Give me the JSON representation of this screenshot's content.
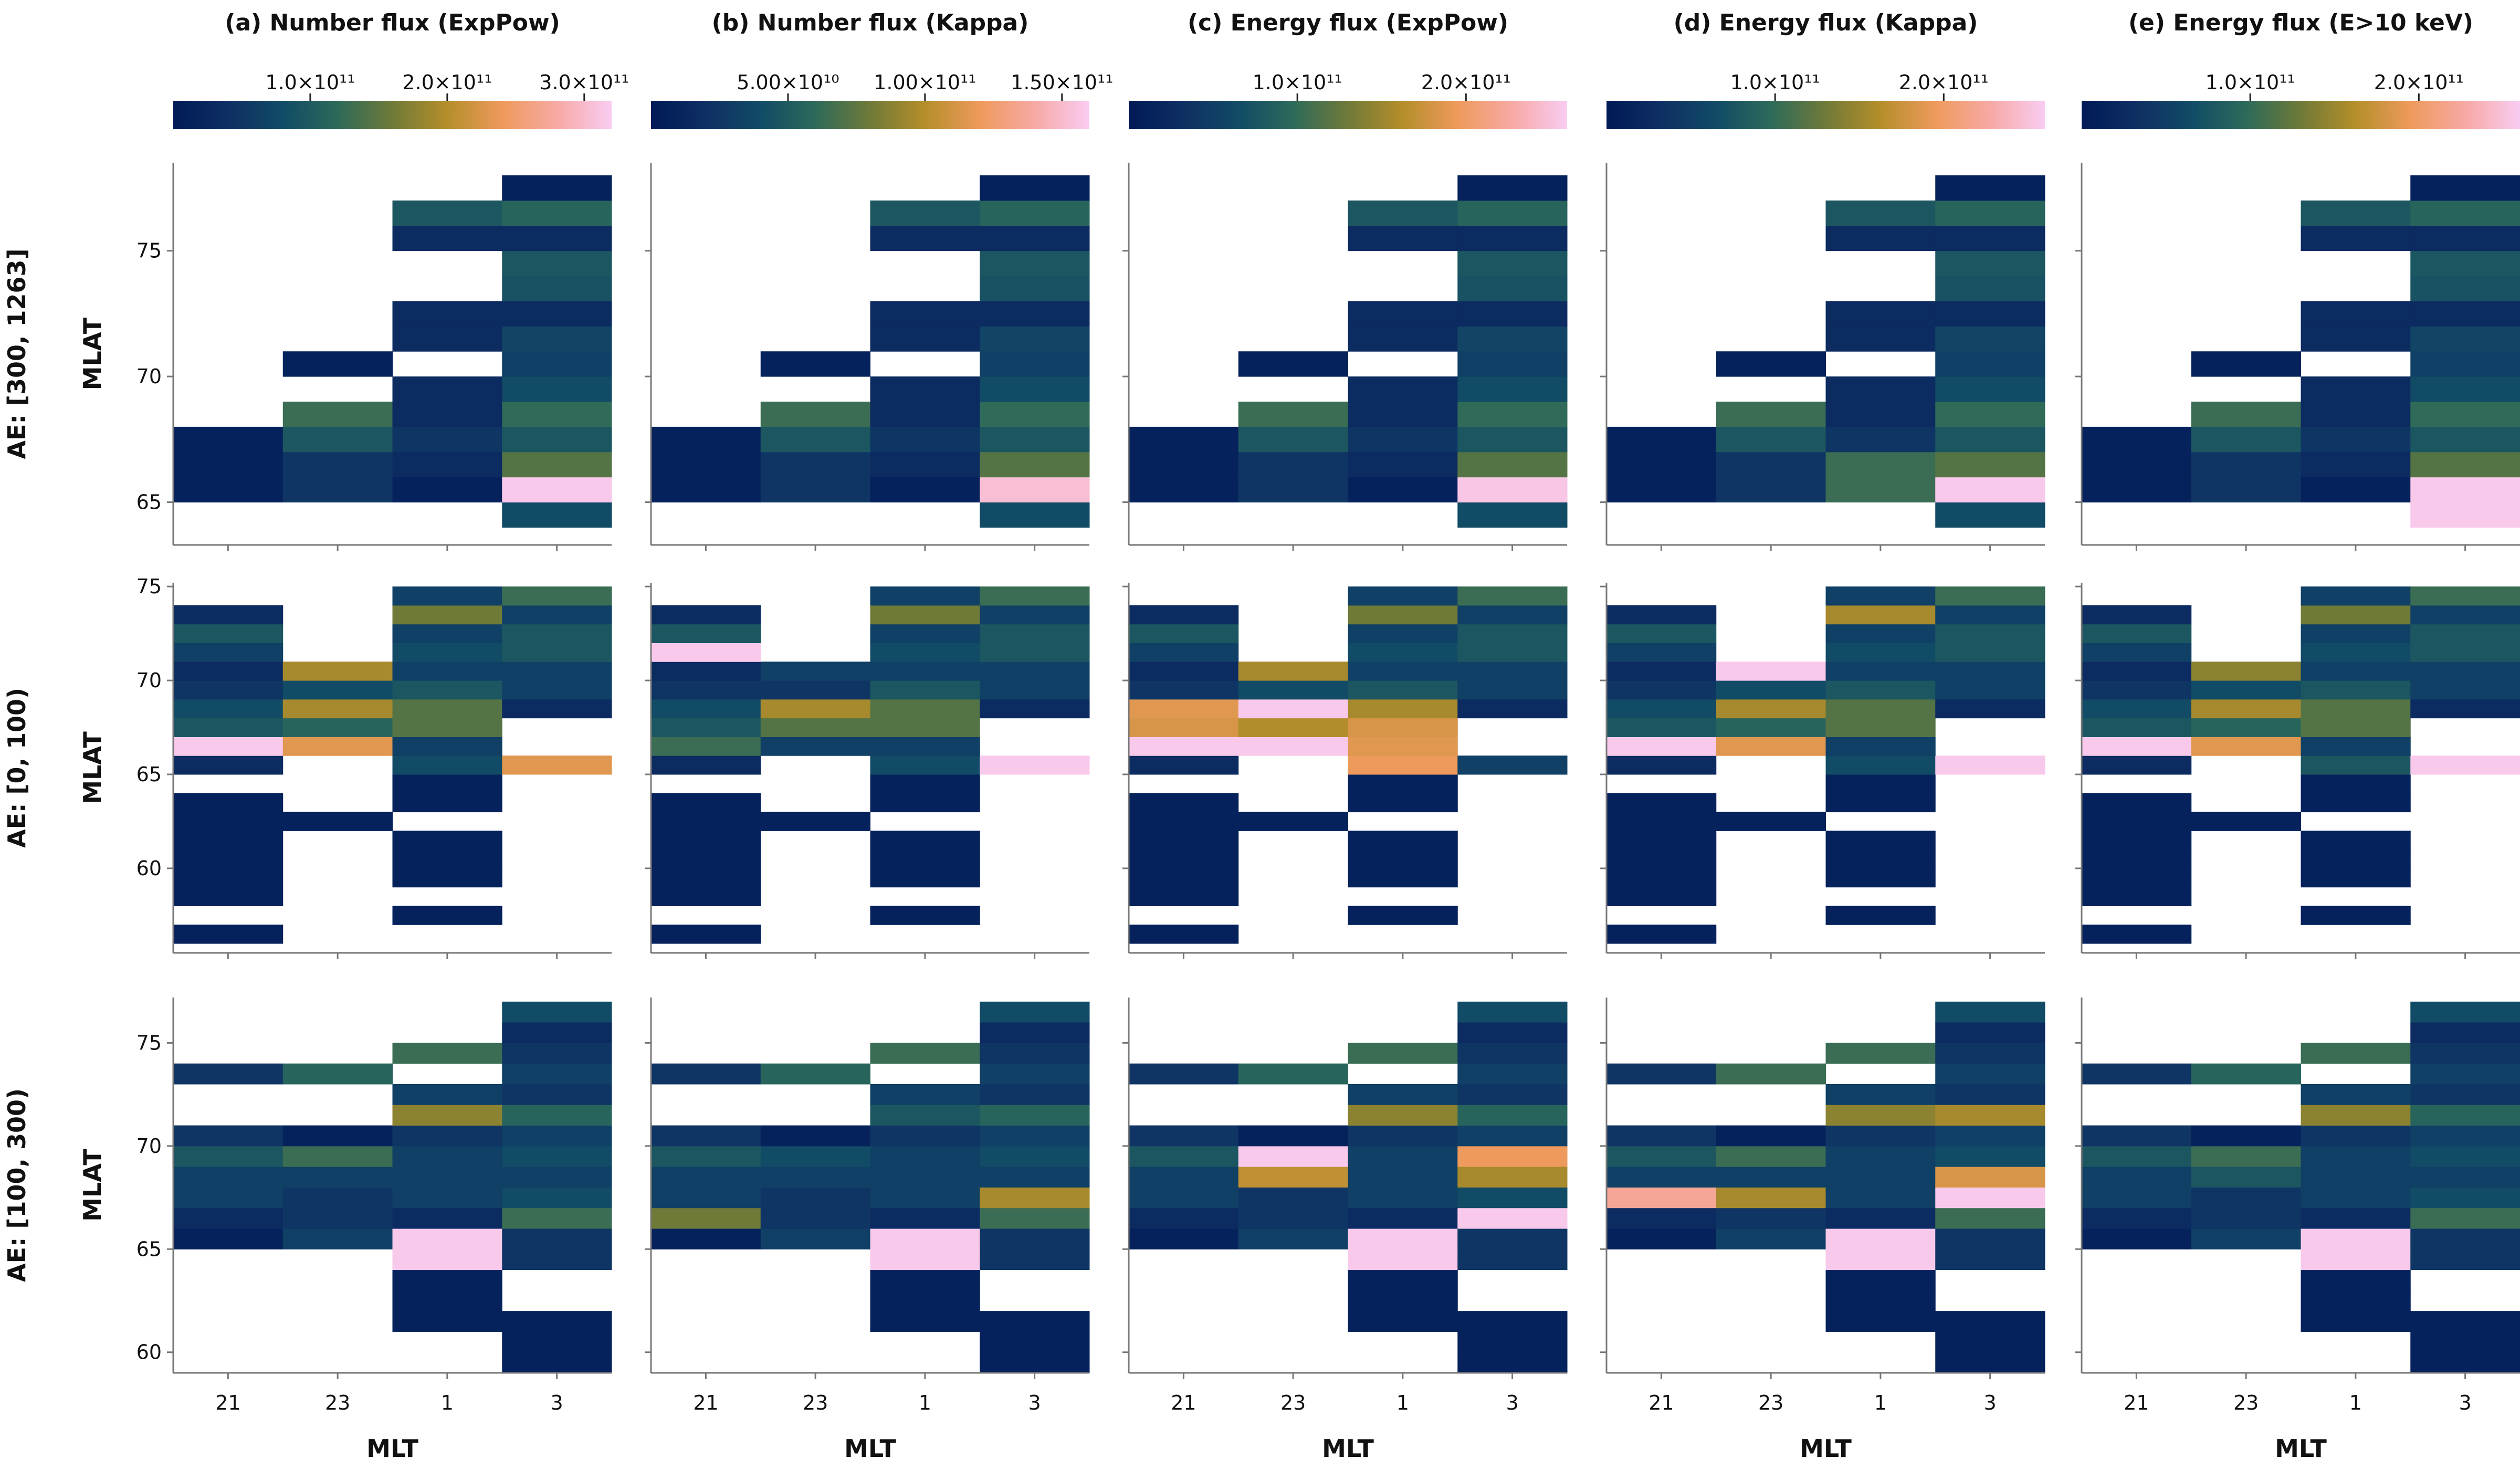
{
  "figure": {
    "row_labels": [
      "AE: [300, 1263]",
      "AE: [0, 100)",
      "AE: [100, 300)"
    ],
    "ylabel": "MLAT",
    "xlabel": "MLT",
    "x_ticks": [
      "21",
      "23",
      "1",
      "3"
    ]
  },
  "colormap": {
    "name": "batlow-like",
    "stops": [
      "#001a57",
      "#0f2f63",
      "#114b66",
      "#2d6a5a",
      "#6f7a38",
      "#b58e2a",
      "#ee9a5c",
      "#f7a9a4",
      "#f9ccf2"
    ]
  },
  "chart_data": [
    {
      "type": "heatmap",
      "title": "(a) Number flux (ExpPow)",
      "colorbar": {
        "max": 320000000000.0,
        "ticks": [
          {
            "value": 100000000000.0,
            "label": "1.0×10¹¹"
          },
          {
            "value": 200000000000.0,
            "label": "2.0×10¹¹"
          },
          {
            "value": 300000000000.0,
            "label": "3.0×10¹¹"
          }
        ]
      }
    },
    {
      "type": "heatmap",
      "title": "(b) Number flux (Kappa)",
      "colorbar": {
        "max": 160000000000.0,
        "ticks": [
          {
            "value": 50000000000.0,
            "label": "5.00×10¹⁰"
          },
          {
            "value": 100000000000.0,
            "label": "1.00×10¹¹"
          },
          {
            "value": 150000000000.0,
            "label": "1.50×10¹¹"
          }
        ]
      }
    },
    {
      "type": "heatmap",
      "title": "(c) Energy flux (ExpPow)",
      "colorbar": {
        "max": 260000000000.0,
        "ticks": [
          {
            "value": 100000000000.0,
            "label": "1.0×10¹¹"
          },
          {
            "value": 200000000000.0,
            "label": "2.0×10¹¹"
          }
        ]
      }
    },
    {
      "type": "heatmap",
      "title": "(d) Energy flux (Kappa)",
      "colorbar": {
        "max": 260000000000.0,
        "ticks": [
          {
            "value": 100000000000.0,
            "label": "1.0×10¹¹"
          },
          {
            "value": 200000000000.0,
            "label": "2.0×10¹¹"
          }
        ]
      }
    },
    {
      "type": "heatmap",
      "title": "(e) Energy flux (E>10 keV)",
      "colorbar": {
        "max": 260000000000.0,
        "ticks": [
          {
            "value": 100000000000.0,
            "label": "1.0×10¹¹"
          },
          {
            "value": 200000000000.0,
            "label": "2.0×10¹¹"
          }
        ]
      }
    }
  ],
  "rows": [
    {
      "ylim": [
        63.3,
        78.5
      ],
      "yticks": [
        65,
        70,
        75
      ],
      "lat_bins": [
        64.5,
        65.5,
        66.5,
        67.5,
        68.5,
        69.5,
        70.5,
        71.5,
        72.5,
        73.5,
        74.5,
        75.5,
        76.5,
        77.5
      ],
      "x_centers": [
        21,
        23,
        1,
        3
      ],
      "cells": [
        [
          null,
          null,
          null,
          0.25
        ],
        [
          0.05,
          0.15,
          0.05,
          0.99
        ],
        [
          0.05,
          0.15,
          0.1,
          0.45
        ],
        [
          0.05,
          0.3,
          0.15,
          0.3
        ],
        [
          null,
          0.4,
          0.1,
          0.38
        ],
        [
          null,
          null,
          0.1,
          0.25
        ],
        [
          null,
          0.05,
          null,
          0.2
        ],
        [
          null,
          null,
          0.1,
          0.22
        ],
        [
          null,
          null,
          0.1,
          0.1
        ],
        [
          null,
          null,
          null,
          0.28
        ],
        [
          null,
          null,
          null,
          0.3
        ],
        [
          null,
          null,
          0.1,
          0.1
        ],
        [
          null,
          null,
          0.3,
          0.35
        ],
        [
          null,
          null,
          null,
          0.05
        ]
      ],
      "panel_values": [
        null,
        {
          "override": [
            [
              1,
              3,
              0.95
            ]
          ]
        },
        {
          "override": [
            [
              1,
              3,
              0.98
            ],
            [
              12,
              3,
              0.35
            ]
          ]
        },
        {
          "override": [
            [
              1,
              2,
              0.4
            ],
            [
              2,
              2,
              0.4
            ]
          ]
        },
        {
          "override": [
            [
              1,
              3,
              0.99
            ],
            [
              0,
              3,
              0.99
            ]
          ]
        }
      ]
    },
    {
      "ylim": [
        55.5,
        75.2
      ],
      "yticks": [
        60,
        65,
        70,
        75
      ],
      "lat_bins": [
        56.5,
        57.5,
        58.5,
        59.5,
        60.5,
        61.5,
        62.5,
        63.5,
        64.5,
        65.5,
        66.5,
        67.5,
        68.5,
        69.5,
        70.5,
        71.5,
        72.5,
        73.5,
        74.5
      ],
      "x_centers": [
        21,
        23,
        1,
        3
      ],
      "cells": [
        [
          0.05,
          null,
          null,
          null
        ],
        [
          null,
          null,
          0.05,
          null
        ],
        [
          0.05,
          null,
          null,
          null
        ],
        [
          0.05,
          null,
          0.05,
          null
        ],
        [
          0.05,
          null,
          0.05,
          null
        ],
        [
          0.05,
          null,
          0.05,
          null
        ],
        [
          0.05,
          0.05,
          null,
          null
        ],
        [
          0.05,
          null,
          0.05,
          null
        ],
        [
          null,
          null,
          0.05,
          null
        ],
        [
          0.1,
          null,
          0.25,
          0.72
        ],
        [
          0.99,
          0.72,
          0.2,
          null
        ],
        [
          0.3,
          0.35,
          0.45,
          null
        ],
        [
          0.25,
          0.6,
          0.45,
          0.1
        ],
        [
          0.15,
          0.25,
          0.3,
          0.2
        ],
        [
          0.1,
          0.6,
          0.2,
          0.2
        ],
        [
          0.2,
          null,
          0.25,
          0.3
        ],
        [
          0.3,
          null,
          0.2,
          0.3
        ],
        [
          0.1,
          null,
          0.5,
          0.2
        ],
        [
          null,
          null,
          0.2,
          0.4
        ]
      ],
      "panel_values": [
        null,
        {
          "override": [
            [
              10,
              0,
              0.4
            ],
            [
              15,
              0,
              0.99
            ],
            [
              9,
              3,
              0.99
            ],
            [
              10,
              1,
              0.2
            ],
            [
              11,
              1,
              0.45
            ],
            [
              13,
              1,
              0.15
            ],
            [
              14,
              1,
              0.2
            ]
          ]
        },
        {
          "override": [
            [
              10,
              0,
              0.99
            ],
            [
              11,
              0,
              0.7
            ],
            [
              12,
              0,
              0.72
            ],
            [
              10,
              1,
              0.99
            ],
            [
              11,
              1,
              0.62
            ],
            [
              12,
              1,
              0.99
            ],
            [
              10,
              2,
              0.72
            ],
            [
              11,
              2,
              0.7
            ],
            [
              12,
              2,
              0.6
            ],
            [
              9,
              2,
              0.75
            ],
            [
              9,
              3,
              0.2
            ]
          ]
        },
        {
          "override": [
            [
              14,
              1,
              0.99
            ],
            [
              9,
              3,
              0.99
            ],
            [
              16,
              0,
              0.3
            ],
            [
              17,
              2,
              0.6
            ]
          ]
        },
        {
          "override": [
            [
              14,
              1,
              0.55
            ],
            [
              9,
              3,
              0.99
            ],
            [
              12,
              0,
              0.25
            ],
            [
              9,
              2,
              0.3
            ]
          ]
        }
      ]
    },
    {
      "ylim": [
        59.0,
        77.2
      ],
      "yticks": [
        60,
        65,
        70,
        75
      ],
      "lat_bins": [
        59.5,
        60.5,
        61.5,
        62.5,
        63.5,
        64.5,
        65.5,
        66.5,
        67.5,
        68.5,
        69.5,
        70.5,
        71.5,
        72.5,
        73.5,
        74.5,
        75.5,
        76.5
      ],
      "x_centers": [
        21,
        23,
        1,
        3
      ],
      "cells": [
        [
          null,
          null,
          null,
          0.05
        ],
        [
          null,
          null,
          null,
          0.05
        ],
        [
          null,
          null,
          0.05,
          0.05
        ],
        [
          null,
          null,
          0.05,
          null
        ],
        [
          null,
          null,
          0.05,
          null
        ],
        [
          null,
          null,
          0.99,
          0.15
        ],
        [
          0.05,
          0.2,
          0.99,
          0.15
        ],
        [
          0.1,
          0.15,
          0.1,
          0.4
        ],
        [
          0.2,
          0.15,
          0.2,
          0.25
        ],
        [
          0.2,
          0.2,
          0.2,
          0.2
        ],
        [
          0.3,
          0.4,
          0.2,
          0.25
        ],
        [
          0.15,
          0.05,
          0.15,
          0.2
        ],
        [
          null,
          null,
          0.55,
          0.35
        ],
        [
          null,
          null,
          0.2,
          0.15
        ],
        [
          0.15,
          0.35,
          null,
          0.2
        ],
        [
          null,
          null,
          0.4,
          0.15
        ],
        [
          null,
          null,
          null,
          0.1
        ],
        [
          null,
          null,
          null,
          0.25
        ]
      ],
      "panel_values": [
        null,
        {
          "override": [
            [
              7,
              0,
              0.5
            ],
            [
              12,
              2,
              0.3
            ],
            [
              8,
              3,
              0.6
            ],
            [
              10,
              1,
              0.25
            ]
          ]
        },
        {
          "override": [
            [
              10,
              1,
              0.99
            ],
            [
              9,
              1,
              0.65
            ],
            [
              7,
              3,
              0.99
            ],
            [
              10,
              3,
              0.75
            ],
            [
              9,
              3,
              0.6
            ],
            [
              5,
              2,
              0.99
            ],
            [
              6,
              2,
              0.99
            ]
          ]
        },
        {
          "override": [
            [
              8,
              0,
              0.85
            ],
            [
              8,
              1,
              0.6
            ],
            [
              9,
              3,
              0.7
            ],
            [
              8,
              3,
              0.99
            ],
            [
              12,
              3,
              0.6
            ],
            [
              14,
              1,
              0.4
            ]
          ]
        },
        {
          "override": [
            [
              6,
              2,
              0.99
            ],
            [
              7,
              3,
              0.4
            ],
            [
              9,
              1,
              0.3
            ]
          ]
        }
      ]
    }
  ]
}
